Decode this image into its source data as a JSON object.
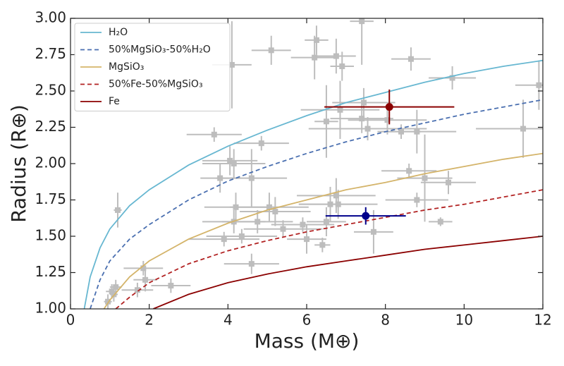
{
  "chart_data": {
    "type": "scatter",
    "xlabel": "Mass (M⊕)",
    "ylabel": "Radius (R⊕)",
    "xlim": [
      0,
      12
    ],
    "ylim": [
      1,
      3
    ],
    "xticks": [
      0,
      2,
      4,
      6,
      8,
      10,
      12
    ],
    "yticks": [
      {
        "value": 1,
        "label": "1.00"
      },
      {
        "value": 1.25,
        "label": "1.25"
      },
      {
        "value": 1.5,
        "label": "1.50"
      },
      {
        "value": 1.75,
        "label": "1.75"
      },
      {
        "value": 2,
        "label": "2.00"
      },
      {
        "value": 2.25,
        "label": "2.25"
      },
      {
        "value": 2.5,
        "label": "2.50"
      },
      {
        "value": 2.75,
        "label": "2.75"
      },
      {
        "value": 3,
        "label": "3.00"
      }
    ],
    "legend": "upper left",
    "series": [
      {
        "name": "H₂O",
        "color": "#67b7d1",
        "linestyle": "solid",
        "x": [
          0.35,
          0.5,
          0.75,
          1,
          1.5,
          2,
          3,
          4,
          5,
          6,
          7,
          8,
          9,
          10,
          11,
          12
        ],
        "values": [
          1.0,
          1.22,
          1.42,
          1.55,
          1.71,
          1.82,
          1.99,
          2.12,
          2.23,
          2.33,
          2.42,
          2.49,
          2.56,
          2.62,
          2.67,
          2.71
        ]
      },
      {
        "name": "50%MgSiO₃-50%H₂O",
        "color": "#4a6fb0",
        "linestyle": "dashed",
        "x": [
          0.5,
          0.75,
          1,
          1.5,
          2,
          3,
          4,
          5,
          6,
          7,
          8,
          9,
          10,
          11,
          12
        ],
        "values": [
          1.0,
          1.2,
          1.33,
          1.48,
          1.58,
          1.75,
          1.88,
          1.98,
          2.07,
          2.15,
          2.22,
          2.28,
          2.34,
          2.39,
          2.44
        ]
      },
      {
        "name": "MgSiO₃",
        "color": "#d4b46a",
        "linestyle": "solid",
        "x": [
          0.85,
          1,
          1.5,
          2,
          3,
          4,
          5,
          6,
          7,
          8,
          9,
          10,
          11,
          12
        ],
        "values": [
          1.0,
          1.06,
          1.22,
          1.33,
          1.48,
          1.59,
          1.68,
          1.75,
          1.82,
          1.87,
          1.93,
          1.98,
          2.03,
          2.07
        ]
      },
      {
        "name": "50%Fe-50%MgSiO₃",
        "color": "#b22222",
        "linestyle": "dashed",
        "x": [
          1.15,
          1.5,
          2,
          3,
          4,
          5,
          6,
          7,
          8,
          9,
          10,
          11,
          12
        ],
        "values": [
          1.0,
          1.08,
          1.18,
          1.31,
          1.4,
          1.47,
          1.53,
          1.58,
          1.63,
          1.68,
          1.72,
          1.77,
          1.82
        ]
      },
      {
        "name": "Fe",
        "color": "#8b0000",
        "linestyle": "solid",
        "x": [
          2.1,
          3,
          4,
          5,
          6,
          7,
          8,
          9,
          10,
          11,
          12
        ],
        "values": [
          1.0,
          1.1,
          1.18,
          1.24,
          1.29,
          1.33,
          1.37,
          1.41,
          1.44,
          1.47,
          1.5
        ]
      }
    ],
    "points": {
      "color": "#bdbdbd",
      "x": [
        1.2,
        0.95,
        1.05,
        1.15,
        1.1,
        1.7,
        1.85,
        1.9,
        2.55,
        3.65,
        3.8,
        4.05,
        4.15,
        4.1,
        4.15,
        4.2,
        3.9,
        4.35,
        4.6,
        4.75,
        4.85,
        4.6,
        5.05,
        5.2,
        5.1,
        5.4,
        5.9,
        6.0,
        6.2,
        6.25,
        6.4,
        6.5,
        6.5,
        6.6,
        6.75,
        6.8,
        6.75,
        6.9,
        6.85,
        7.4,
        7.45,
        7.4,
        7.55,
        7.7,
        8.05,
        8.4,
        8.6,
        8.8,
        8.8,
        8.65,
        9.0,
        9.4,
        9.6,
        9.7,
        11.5,
        11.9
      ],
      "y": [
        1.68,
        1.05,
        1.12,
        1.15,
        1.1,
        1.13,
        1.28,
        1.2,
        1.16,
        2.2,
        1.9,
        2.02,
        2.0,
        2.68,
        1.6,
        1.7,
        1.48,
        1.5,
        1.9,
        1.6,
        2.14,
        1.31,
        1.7,
        1.67,
        2.78,
        1.55,
        1.58,
        1.48,
        2.73,
        2.85,
        1.44,
        2.29,
        1.6,
        1.72,
        1.78,
        1.72,
        2.74,
        2.67,
        2.37,
        2.31,
        2.42,
        2.98,
        2.24,
        1.53,
        2.3,
        2.22,
        1.95,
        1.75,
        2.22,
        2.72,
        1.9,
        1.6,
        1.87,
        2.59,
        2.24,
        2.54
      ],
      "xerr": [
        0.1,
        0.1,
        0.15,
        0.15,
        0.1,
        0.4,
        0.5,
        0.3,
        0.5,
        0.7,
        0.5,
        0.7,
        0.8,
        0.5,
        0.8,
        0.8,
        0.9,
        0.9,
        0.9,
        0.9,
        0.7,
        0.7,
        1.0,
        0.9,
        0.5,
        1.0,
        0.8,
        0.5,
        0.6,
        0.3,
        0.2,
        0.3,
        0.5,
        0.8,
        1.0,
        1.0,
        0.5,
        0.3,
        1.0,
        0.8,
        0.8,
        0.3,
        1.5,
        0.5,
        1.0,
        0.5,
        0.7,
        0.8,
        1.0,
        0.5,
        0.7,
        0.3,
        0.7,
        0.6,
        1.2,
        0.6
      ],
      "yerr": [
        0.12,
        0.05,
        0.05,
        0.05,
        0.05,
        0.05,
        0.05,
        0.08,
        0.05,
        0.05,
        0.1,
        0.1,
        0.1,
        0.3,
        0.08,
        0.1,
        0.05,
        0.05,
        0.2,
        0.08,
        0.05,
        0.07,
        0.1,
        0.1,
        0.1,
        0.06,
        0.05,
        0.1,
        0.15,
        0.1,
        0.05,
        0.25,
        0.1,
        0.12,
        0.12,
        0.1,
        0.12,
        0.1,
        0.2,
        0.1,
        0.1,
        0.3,
        0.08,
        0.15,
        0.1,
        0.05,
        0.05,
        0.05,
        0.15,
        0.08,
        0.3,
        0.03,
        0.08,
        0.08,
        0.2,
        0.17
      ]
    },
    "markers": [
      {
        "color": "#8b0000",
        "x": 8.1,
        "y": 2.39,
        "xerr": 1.65,
        "yerr": 0.12
      },
      {
        "color": "#00008b",
        "x": 7.5,
        "y": 1.64,
        "xerr": 1.02,
        "yerr": 0.06
      }
    ]
  }
}
